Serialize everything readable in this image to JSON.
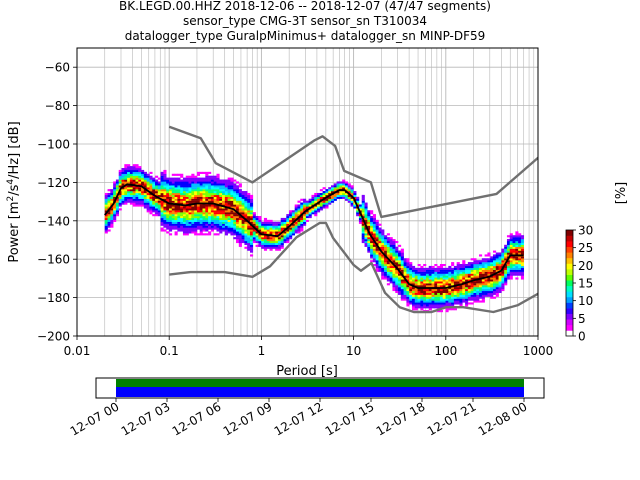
{
  "title": {
    "line1": "BK.LEGD.00.HHZ   2018-12-06 -- 2018-12-07  (47/47 segments)",
    "line2": "sensor_type CMG-3T sensor_sn T310034",
    "line3": "datalogger_type GuralpMinimus+ datalogger_sn MINP-DF59"
  },
  "chart_data": {
    "type": "heatmap",
    "subtype": "probabilistic power spectral density",
    "xlabel": "Period [s]",
    "ylabel_parts": [
      "Power [m",
      "2",
      "/s",
      "4",
      "/Hz] [dB]"
    ],
    "xscale": "log",
    "xlim": [
      0.01,
      1000
    ],
    "ylim": [
      -200,
      -50
    ],
    "xticks": [
      {
        "value": 0.01,
        "label": "0.01"
      },
      {
        "value": 0.1,
        "label": "0.1"
      },
      {
        "value": 1,
        "label": "1"
      },
      {
        "value": 10,
        "label": "10"
      },
      {
        "value": 100,
        "label": "100"
      },
      {
        "value": 1000,
        "label": "1000"
      }
    ],
    "yticks": [
      -200,
      -180,
      -160,
      -140,
      -120,
      -100,
      -80,
      -60
    ],
    "grid": true,
    "colorbar": {
      "label": "[%]",
      "range": [
        0,
        30
      ],
      "ticks": [
        0,
        5,
        10,
        15,
        20,
        25,
        30
      ],
      "colors": [
        "#ffffff",
        "#ff00ff",
        "#8000ff",
        "#0000ff",
        "#00bfff",
        "#00ffff",
        "#00ff80",
        "#80ff00",
        "#ffff00",
        "#ff8000",
        "#ff0000",
        "#800000"
      ]
    },
    "mode_curve": {
      "name": "mode",
      "color": "#000000",
      "points": [
        [
          0.02,
          -137
        ],
        [
          0.025,
          -131
        ],
        [
          0.03,
          -123
        ],
        [
          0.035,
          -121
        ],
        [
          0.05,
          -122
        ],
        [
          0.07,
          -127
        ],
        [
          0.1,
          -131
        ],
        [
          0.15,
          -132
        ],
        [
          0.2,
          -131
        ],
        [
          0.3,
          -131
        ],
        [
          0.5,
          -134
        ],
        [
          0.7,
          -140
        ],
        [
          1,
          -147
        ],
        [
          1.5,
          -148
        ],
        [
          2,
          -143
        ],
        [
          3,
          -135
        ],
        [
          5,
          -128
        ],
        [
          7,
          -124
        ],
        [
          8,
          -124
        ],
        [
          10,
          -128
        ],
        [
          15,
          -147
        ],
        [
          20,
          -156
        ],
        [
          30,
          -165
        ],
        [
          40,
          -173
        ],
        [
          50,
          -175
        ],
        [
          70,
          -175
        ],
        [
          100,
          -175
        ],
        [
          150,
          -173
        ],
        [
          200,
          -171
        ],
        [
          300,
          -169
        ],
        [
          400,
          -166
        ],
        [
          500,
          -158
        ],
        [
          700,
          -158
        ]
      ]
    },
    "noise_models": {
      "color": "#707070",
      "high": [
        [
          0.1,
          -91
        ],
        [
          0.22,
          -97
        ],
        [
          0.32,
          -110
        ],
        [
          0.8,
          -120
        ],
        [
          3.8,
          -98
        ],
        [
          4.6,
          -96
        ],
        [
          6.3,
          -101
        ],
        [
          7.9,
          -114
        ],
        [
          15.4,
          -120
        ],
        [
          20,
          -138
        ],
        [
          354.8,
          -126
        ],
        [
          10000,
          -80
        ]
      ],
      "low": [
        [
          0.1,
          -168
        ],
        [
          0.17,
          -166.7
        ],
        [
          0.4,
          -166.7
        ],
        [
          0.8,
          -169.2
        ],
        [
          1.24,
          -163.7
        ],
        [
          2.4,
          -148.6
        ],
        [
          4.3,
          -141.1
        ],
        [
          5,
          -141.1
        ],
        [
          6,
          -149
        ],
        [
          10,
          -163
        ],
        [
          12,
          -166
        ],
        [
          15.6,
          -162
        ],
        [
          21.9,
          -177.5
        ],
        [
          31.6,
          -185
        ],
        [
          45,
          -187.5
        ],
        [
          70,
          -187.5
        ],
        [
          101,
          -185
        ],
        [
          154,
          -185
        ],
        [
          328,
          -187.5
        ],
        [
          600,
          -184
        ],
        [
          1000,
          -178
        ]
      ]
    },
    "temporal_coverage": {
      "tick_labels": [
        "12-07 00",
        "12-07 03",
        "12-07 06",
        "12-07 09",
        "12-07 12",
        "12-07 15",
        "12-07 18",
        "12-07 21",
        "12-08 00"
      ],
      "bar_colors": [
        "#008000",
        "#0000ff"
      ],
      "coverage_fraction": 1.0
    }
  }
}
